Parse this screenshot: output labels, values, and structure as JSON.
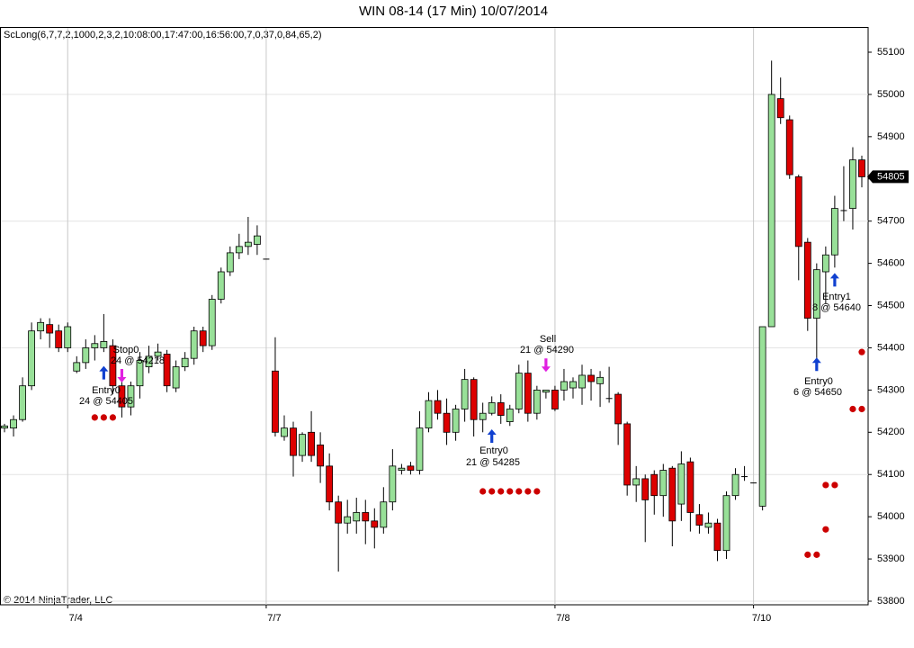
{
  "chart_data": {
    "type": "candlestick",
    "title": "WIN 08-14 (17 Min)  10/07/2014",
    "indicator_label": "ScLong(6,7,7,2,1000,2,3,2,10:08:00,17:47:00,16:56:00,7,0,37,0,84,65,2)",
    "copyright": "© 2014 NinjaTrader, LLC",
    "up_color": "#98e098",
    "down_color": "#dd0000",
    "open": [
      54210,
      54210,
      54230,
      54310,
      54440,
      54455,
      54440,
      54400,
      54345,
      54365,
      54400,
      54400,
      54405,
      54310,
      54260,
      54310,
      54355,
      54380,
      54385,
      54305,
      54355,
      54375,
      54440,
      54405,
      54515,
      54580,
      54625,
      54640,
      54645,
      54610,
      54345,
      54190,
      54210,
      54145,
      54200,
      54170,
      54120,
      54035,
      53985,
      53990,
      54010,
      53990,
      53975,
      54035,
      54110,
      54120,
      54110,
      54210,
      54275,
      54245,
      54200,
      54255,
      54325,
      54230,
      54245,
      54270,
      54225,
      54255,
      54340,
      54245,
      54295,
      54300,
      54300,
      54305,
      54305,
      54335,
      54315,
      54280,
      54290,
      54220,
      54075,
      54090,
      54100,
      54050,
      54115,
      54030,
      54130,
      54005,
      53975,
      53985,
      53920,
      54050,
      54095,
      54080,
      54025,
      54450,
      54990,
      54940,
      54805,
      54650,
      54470,
      54580,
      54620,
      54725,
      54730,
      54845
    ],
    "high": [
      54220,
      54240,
      54330,
      54460,
      54470,
      54470,
      54455,
      54460,
      54380,
      54420,
      54430,
      54480,
      54420,
      54320,
      54320,
      54390,
      54405,
      54410,
      54395,
      54370,
      54390,
      54450,
      54450,
      54525,
      54590,
      54640,
      54670,
      54710,
      54690,
      54610,
      54425,
      54240,
      54225,
      54200,
      54250,
      54200,
      54150,
      54050,
      54040,
      54045,
      54040,
      54020,
      54070,
      54160,
      54125,
      54130,
      54250,
      54295,
      54300,
      54280,
      54265,
      54350,
      54330,
      54270,
      54285,
      54290,
      54265,
      54360,
      54370,
      54310,
      54300,
      54310,
      54350,
      54330,
      54360,
      54350,
      54345,
      54355,
      54295,
      54225,
      54120,
      54100,
      54110,
      54125,
      54120,
      54155,
      54140,
      54030,
      54010,
      53995,
      54060,
      54115,
      54120,
      54080,
      54450,
      55080,
      55040,
      54950,
      54810,
      54660,
      54600,
      54640,
      54760,
      54830,
      54875,
      54855
    ],
    "low": [
      54200,
      54190,
      54225,
      54300,
      54420,
      54400,
      54390,
      54390,
      54340,
      54350,
      54370,
      54390,
      54290,
      54235,
      54240,
      54280,
      54340,
      54370,
      54295,
      54295,
      54345,
      54360,
      54390,
      54395,
      54505,
      54570,
      54610,
      54620,
      54620,
      54610,
      54190,
      54180,
      54095,
      54130,
      54130,
      54080,
      54015,
      53870,
      53960,
      53960,
      53935,
      53925,
      53960,
      54015,
      54100,
      54100,
      54100,
      54200,
      54230,
      54170,
      54180,
      54225,
      54190,
      54200,
      54240,
      54220,
      54215,
      54245,
      54225,
      54230,
      54280,
      54250,
      54275,
      54280,
      54265,
      54275,
      54260,
      54270,
      54170,
      54050,
      54035,
      53940,
      54005,
      54000,
      53930,
      53990,
      53965,
      53960,
      53960,
      53895,
      53900,
      54040,
      54085,
      54080,
      54015,
      54450,
      54930,
      54800,
      54560,
      54440,
      54360,
      54505,
      54590,
      54700,
      54680,
      54780
    ],
    "close": [
      54215,
      54230,
      54310,
      54440,
      54460,
      54435,
      54400,
      54450,
      54365,
      54400,
      54410,
      54415,
      54310,
      54260,
      54310,
      54370,
      54380,
      54390,
      54310,
      54355,
      54375,
      54440,
      54405,
      54515,
      54580,
      54625,
      54640,
      54650,
      54665,
      54610,
      54200,
      54210,
      54145,
      54195,
      54145,
      54120,
      54035,
      53985,
      54000,
      54010,
      53990,
      53975,
      54035,
      54120,
      54115,
      54110,
      54210,
      54275,
      54245,
      54200,
      54255,
      54325,
      54230,
      54245,
      54270,
      54240,
      54255,
      54340,
      54245,
      54300,
      54300,
      54255,
      54320,
      54320,
      54335,
      54320,
      54330,
      54280,
      54220,
      54075,
      54090,
      54040,
      54050,
      54110,
      53990,
      54125,
      54010,
      53980,
      53985,
      53920,
      54050,
      54100,
      54095,
      54080,
      54450,
      55000,
      54945,
      54810,
      54640,
      54470,
      54585,
      54620,
      54730,
      54725,
      54845,
      54805
    ],
    "xlim": [
      -0.5,
      95.5
    ],
    "xticks": [
      {
        "value": 7,
        "label": "7/4"
      },
      {
        "value": 29,
        "label": "7/7"
      },
      {
        "value": 61,
        "label": "7/8"
      },
      {
        "value": 83,
        "label": "7/10"
      }
    ],
    "ylim": [
      53800,
      55100
    ],
    "yticks": [
      53800,
      53900,
      54000,
      54100,
      54200,
      54300,
      54400,
      54500,
      54600,
      54700,
      54800,
      54900,
      55000,
      55100
    ],
    "ygrid": [
      53800,
      54100,
      54400,
      54700,
      55000
    ],
    "last_price": 54805,
    "stop_markers": {
      "color": "#cc0000",
      "x": [
        10,
        11,
        12,
        53,
        54,
        55,
        56,
        57,
        58,
        59,
        89,
        90,
        91,
        91,
        92,
        94,
        95,
        95
      ],
      "values": [
        54235,
        54235,
        54235,
        54060,
        54060,
        54060,
        54060,
        54060,
        54060,
        54060,
        53910,
        53910,
        53970,
        54075,
        54075,
        54255,
        54255,
        54390
      ]
    },
    "entry_arrows": {
      "color": "#1040d0",
      "x": [
        11,
        54,
        90,
        92
      ],
      "values": [
        54340,
        54190,
        54360,
        54560
      ]
    },
    "exit_arrows": {
      "color": "#e020e0",
      "x": [
        13,
        60
      ],
      "values": [
        54335,
        54360
      ]
    },
    "annotations": [
      "Stop0",
      "24 @ 54218",
      "Entry0",
      "24 @ 54405",
      "Sell",
      "21 @ 54290",
      "Entry0",
      "21 @ 54285",
      "Entry1",
      "8 @ 54640",
      "Entry0",
      "6 @ 54650"
    ]
  }
}
